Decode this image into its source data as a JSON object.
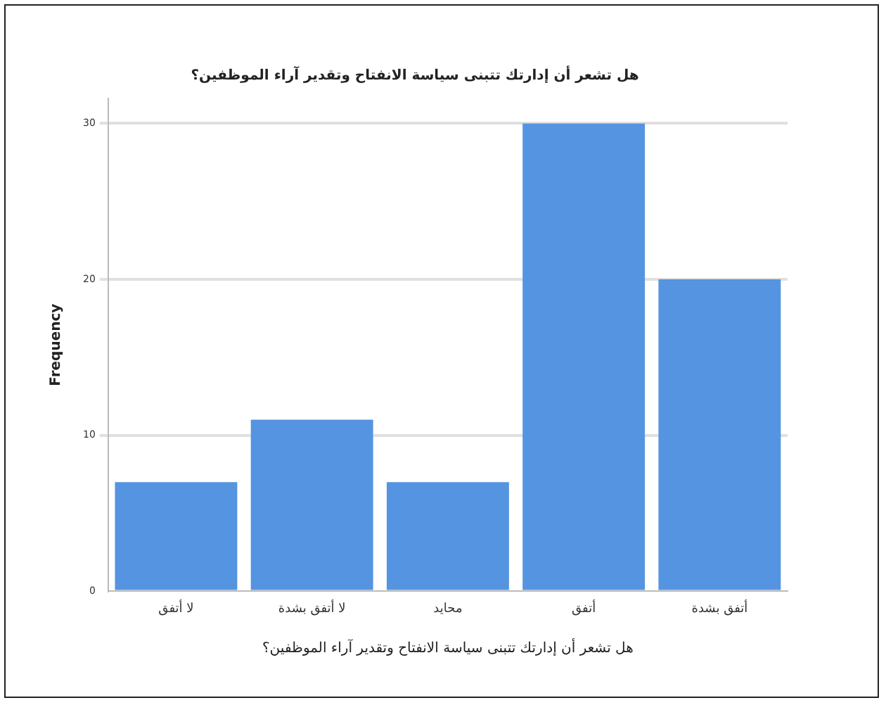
{
  "chart_data": {
    "type": "bar",
    "title": "هل تشعر أن إدارتك تتبنى سياسة الانفتاح وتقدير آراء الموظفين؟",
    "xlabel": "هل تشعر أن إدارتك تتبنى سياسة الانفتاح وتقدير آراء الموظفين؟",
    "ylabel": "Frequency",
    "categories": [
      "لا أتفق",
      "لا أتفق بشدة",
      "محايد",
      "أتفق",
      "أتفق بشدة"
    ],
    "values": [
      7,
      11,
      7,
      30,
      20
    ],
    "color": "#5594e0",
    "ylim": [
      0,
      31.6
    ],
    "yticks": [
      0,
      10,
      20,
      30
    ],
    "grid": "y",
    "legend": false
  }
}
